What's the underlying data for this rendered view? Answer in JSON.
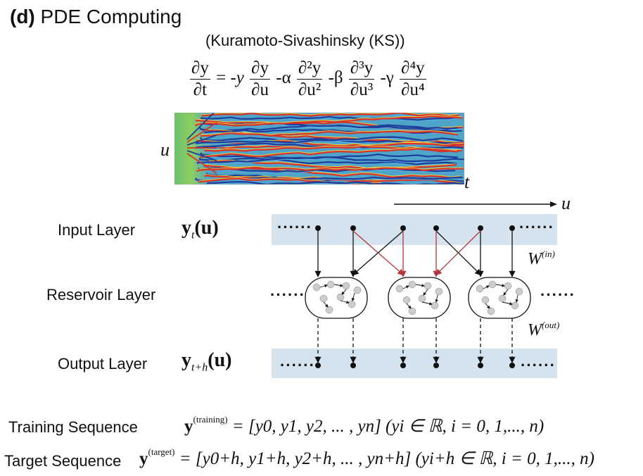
{
  "panel": {
    "tag": "(d)",
    "title": "PDE Computing",
    "subtitle": "(Kuramoto-Sivashinsky (KS))"
  },
  "equation": {
    "lhs_num": "∂y",
    "lhs_den": "∂t",
    "eq": "= -",
    "t1_coef": "y",
    "t1_num": "∂y",
    "t1_den": "∂u",
    "t2_coef": "-α",
    "t2_num": "∂²y",
    "t2_den": "∂u²",
    "t3_coef": "-β",
    "t3_num": "∂³y",
    "t3_den": "∂u³",
    "t4_coef": "-γ",
    "t4_num": "∂⁴y",
    "t4_den": "∂u⁴"
  },
  "heatmap": {
    "y_axis": "u",
    "x_axis": "t"
  },
  "axis_u": "u",
  "layers": {
    "input_label": "Input Layer",
    "input_symbol_main": "y",
    "input_symbol_sub": "t",
    "input_symbol_arg": "(u)",
    "reservoir_label": "Reservoir Layer",
    "output_label": "Output Layer",
    "output_symbol_main": "y",
    "output_symbol_sub": "t+h",
    "output_symbol_arg": "(u)",
    "ellipsis": "······",
    "w_in": "W",
    "w_in_sup": "(in)",
    "w_out": "W",
    "w_out_sup": "(out)"
  },
  "sequences": {
    "training_label": "Training Sequence",
    "training_y": "y",
    "training_sup": "(training)",
    "training_rhs": "= [y0, y1, y2, ... , yn] (yi ∈ ℝ, i = 0, 1,..., n)",
    "target_label": "Target Sequence",
    "target_y": "y",
    "target_sup": "(target)",
    "target_rhs": "= [y0+h, y1+h, y2+h, ... , yn+h] (yi+h ∈ ℝ, i = 0, 1,..., n)"
  },
  "colors": {
    "band": "#d5e3ef",
    "red_arrow": "#b5363a",
    "node": "#cccccc"
  }
}
